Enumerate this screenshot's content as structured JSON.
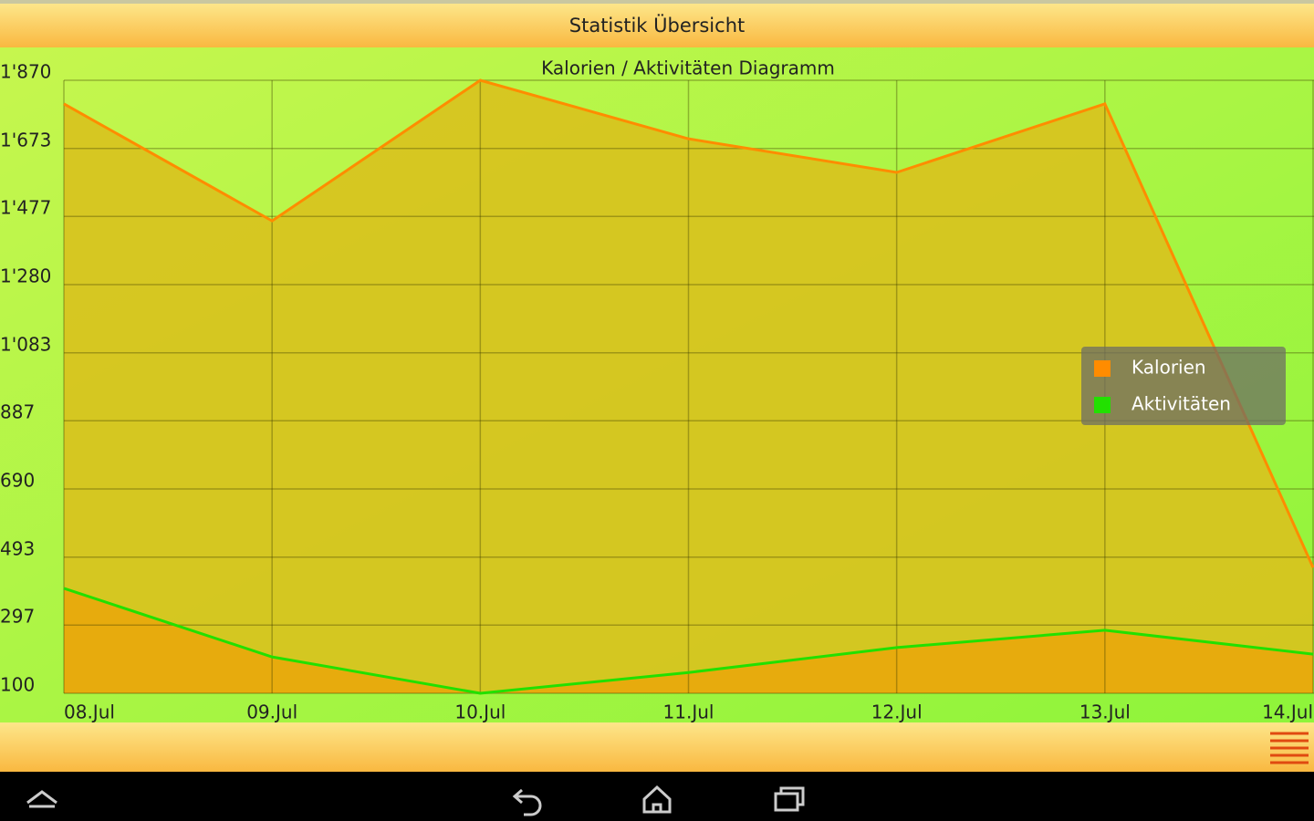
{
  "header": {
    "title": "Statistik Übersicht"
  },
  "chart_data": {
    "type": "area",
    "title": "Kalorien / Aktivitäten Diagramm",
    "categories": [
      "08.Jul",
      "09.Jul",
      "10.Jul",
      "11.Jul",
      "12.Jul",
      "13.Jul",
      "14.Jul"
    ],
    "series": [
      {
        "name": "Kalorien",
        "color": "#ff8c00",
        "fill": "#d8c21e",
        "values": [
          1802,
          1464,
          1870,
          1701,
          1604,
          1802,
          463
        ]
      },
      {
        "name": "Aktivitäten",
        "color": "#22e000",
        "fill": "#e8a80c",
        "values": [
          403,
          205,
          100,
          160,
          232,
          282,
          213
        ]
      }
    ],
    "ylim": [
      100,
      1870
    ],
    "yticks": [
      {
        "value": 100,
        "label": "100"
      },
      297,
      493,
      690,
      887,
      {
        "value": 1083,
        "label": "1'083"
      },
      {
        "value": 1280,
        "label": "1'280"
      },
      {
        "value": 1477,
        "label": "1'477"
      },
      {
        "value": 1673,
        "label": "1'673"
      },
      {
        "value": 1870,
        "label": "1'870"
      }
    ],
    "grid": true,
    "legend": "right"
  }
}
